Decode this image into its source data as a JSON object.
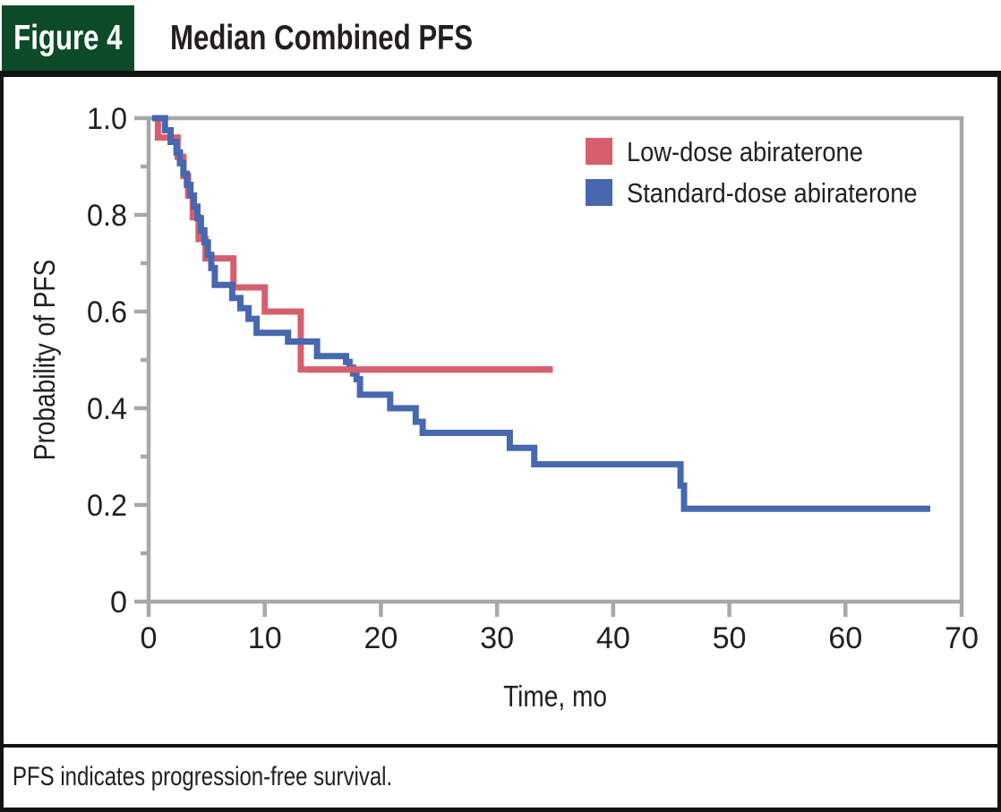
{
  "header": {
    "figure_label": "Figure 4",
    "title": "Median Combined PFS"
  },
  "footer": {
    "note": "PFS indicates progression-free survival."
  },
  "colors": {
    "header_green": "#0d4a28",
    "axis_gray": "#a8a8a8",
    "text": "#231f20",
    "low_dose_red": "#d65f6d",
    "standard_dose_blue": "#4767af"
  },
  "legend": {
    "items": [
      {
        "label": "Low-dose abiraterone",
        "color_key": "low_dose_red"
      },
      {
        "label": "Standard-dose abiraterone",
        "color_key": "standard_dose_blue"
      }
    ]
  },
  "chart_data": {
    "type": "line",
    "subtype": "kaplan-meier-step",
    "title": "Median Combined PFS",
    "xlabel": "Time, mo",
    "ylabel": "Probability of PFS",
    "xlim": [
      0,
      70
    ],
    "ylim": [
      0,
      1.0
    ],
    "xticks": [
      0,
      10,
      20,
      30,
      40,
      50,
      60,
      70
    ],
    "yticks": [
      1.0,
      0.8,
      0.6,
      0.4,
      0.2,
      0
    ],
    "ytick_labels": [
      "1.0",
      "0.8",
      "0.6",
      "0.4",
      "0.2",
      "0"
    ],
    "yticks_minor": [
      0.9,
      0.7,
      0.5,
      0.3,
      0.1
    ],
    "grid": false,
    "legend_position": "top-right-inside",
    "series": [
      {
        "name": "Low-dose abiraterone",
        "color": "#d65f6d",
        "end_t": 34.8,
        "points": [
          [
            0.3,
            1.0
          ],
          [
            0.8,
            0.96
          ],
          [
            2.5,
            0.92
          ],
          [
            3.0,
            0.88
          ],
          [
            3.4,
            0.84
          ],
          [
            3.8,
            0.795
          ],
          [
            4.3,
            0.75
          ],
          [
            4.9,
            0.71
          ],
          [
            7.3,
            0.65
          ],
          [
            10.0,
            0.6
          ],
          [
            13.1,
            0.48
          ]
        ]
      },
      {
        "name": "Standard-dose abiraterone",
        "color": "#4767af",
        "end_t": 67.3,
        "points": [
          [
            0.3,
            1.0
          ],
          [
            1.4,
            0.975
          ],
          [
            1.9,
            0.951
          ],
          [
            2.4,
            0.929
          ],
          [
            2.7,
            0.907
          ],
          [
            3.0,
            0.885
          ],
          [
            3.3,
            0.862
          ],
          [
            3.6,
            0.84
          ],
          [
            3.9,
            0.817
          ],
          [
            4.2,
            0.793
          ],
          [
            4.5,
            0.768
          ],
          [
            4.8,
            0.743
          ],
          [
            5.1,
            0.717
          ],
          [
            5.4,
            0.69
          ],
          [
            5.7,
            0.655
          ],
          [
            7.2,
            0.628
          ],
          [
            7.9,
            0.607
          ],
          [
            8.6,
            0.585
          ],
          [
            9.3,
            0.556
          ],
          [
            12.0,
            0.538
          ],
          [
            14.5,
            0.508
          ],
          [
            17.0,
            0.496
          ],
          [
            17.3,
            0.484
          ],
          [
            17.6,
            0.472
          ],
          [
            17.9,
            0.46
          ],
          [
            18.2,
            0.428
          ],
          [
            20.8,
            0.4
          ],
          [
            23.0,
            0.372
          ],
          [
            23.6,
            0.349
          ],
          [
            31.1,
            0.318
          ],
          [
            33.2,
            0.284
          ],
          [
            45.8,
            0.24
          ],
          [
            46.1,
            0.192
          ]
        ]
      }
    ]
  }
}
